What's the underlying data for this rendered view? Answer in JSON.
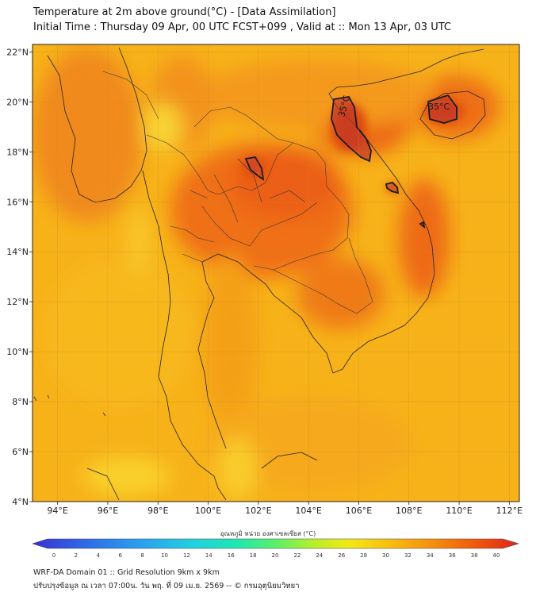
{
  "title": {
    "line1": "Temperature at 2m above ground(°C) - [Data Assimilation]",
    "line2": "Initial Time : Thursday 09 Apr, 00 UTC FCST+099 , Valid at :: Mon 13 Apr, 03 UTC"
  },
  "map": {
    "lat_ticks": [
      "22°N",
      "20°N",
      "18°N",
      "16°N",
      "14°N",
      "12°N",
      "10°N",
      "8°N",
      "6°N",
      "4°N"
    ],
    "lon_ticks": [
      "94°E",
      "96°E",
      "98°E",
      "100°E",
      "102°E",
      "104°E",
      "106°E",
      "108°E",
      "110°E",
      "112°E"
    ],
    "contour_labels": [
      "35°C",
      "35°C"
    ]
  },
  "colorbar": {
    "title": "อุณหภูมิ หน่วย องศาเซลเซียส (°C)",
    "ticks": [
      "0",
      "2",
      "4",
      "6",
      "8",
      "10",
      "12",
      "14",
      "16",
      "18",
      "20",
      "22",
      "24",
      "26",
      "28",
      "30",
      "32",
      "34",
      "36",
      "38",
      "40"
    ],
    "colors": [
      "#3a2fd0",
      "#2f66e6",
      "#2aa0ee",
      "#22d0e0",
      "#1ee8b0",
      "#5af06a",
      "#b8f028",
      "#f2e818",
      "#f8c010",
      "#f59010",
      "#ee5a0c",
      "#e2241a"
    ]
  },
  "footer": {
    "line1": "WRF-DA Domain 01 :: Grid Resolution 9km x 9km",
    "line2": "ปรับปรุงข้อมูล ณ เวลา 07:00น. วัน พฤ. ที่ 09 เม.ย. 2569 -- © กรมอุตุนิยมวิทยา"
  }
}
